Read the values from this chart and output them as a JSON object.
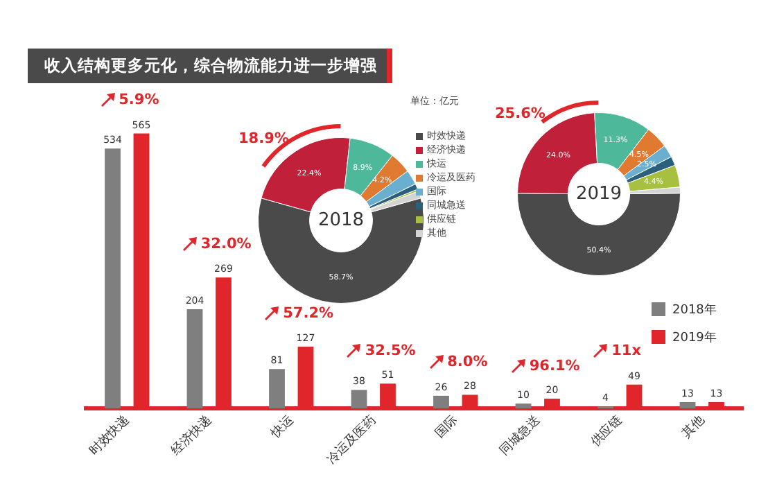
{
  "chart_data": [
    {
      "type": "bar",
      "title": "收入结构更多元化，综合物流能力进一步增强",
      "categories": [
        "时效快递",
        "经济快递",
        "快运",
        "冷运及医药",
        "国际",
        "同城急送",
        "供应链",
        "其他"
      ],
      "series": [
        {
          "name": "2018年",
          "color": "#7f7f7f",
          "values": [
            534,
            204,
            81,
            38,
            26,
            10,
            4,
            13
          ]
        },
        {
          "name": "2019年",
          "color": "#e0262b",
          "values": [
            565,
            269,
            127,
            51,
            28,
            20,
            49,
            13
          ]
        }
      ],
      "data_labels": true,
      "legend": "right",
      "tick_labels": "x",
      "annotations": [
        "5.9%",
        "32.0%",
        "57.2%",
        "32.5%",
        "8.0%",
        "96.1%",
        "11x",
        "单位：亿元"
      ]
    },
    {
      "type": "donut",
      "title": "2018",
      "categories": [
        "时效快递",
        "经济快递",
        "快运",
        "冷运及医药",
        "国际",
        "同城急送",
        "供应链",
        "其他"
      ],
      "values": [
        58.7,
        22.4,
        8.9,
        4.2,
        2.9,
        1.1,
        0.4,
        1.4
      ],
      "colors": [
        "#4a4a4a",
        "#c0203a",
        "#4db89a",
        "#e07a30",
        "#6aaed0",
        "#2a5f7e",
        "#a8c040",
        "#d4d4d4"
      ],
      "value_labels": [
        "58.7%",
        "22.4%",
        "8.9%",
        "4.2%",
        null,
        null,
        null,
        null
      ],
      "legend": "right",
      "annotations": [
        "18.9%"
      ]
    },
    {
      "type": "donut",
      "title": "2019",
      "categories": [
        null,
        null,
        null,
        null,
        null,
        null,
        null,
        null
      ],
      "values": [
        50.4,
        24.0,
        11.3,
        4.5,
        2.5,
        1.8,
        4.4,
        1.2
      ],
      "colors": [
        "#4a4a4a",
        "#c0203a",
        "#4db89a",
        "#e07a30",
        "#6aaed0",
        "#2a5f7e",
        "#a8c040",
        "#d4d4d4"
      ],
      "value_labels": [
        "50.4%",
        "24.0%",
        "11.3%",
        "4.5%",
        "2.5%",
        null,
        "4.4%",
        null
      ],
      "annotations": [
        "25.6%"
      ]
    }
  ]
}
